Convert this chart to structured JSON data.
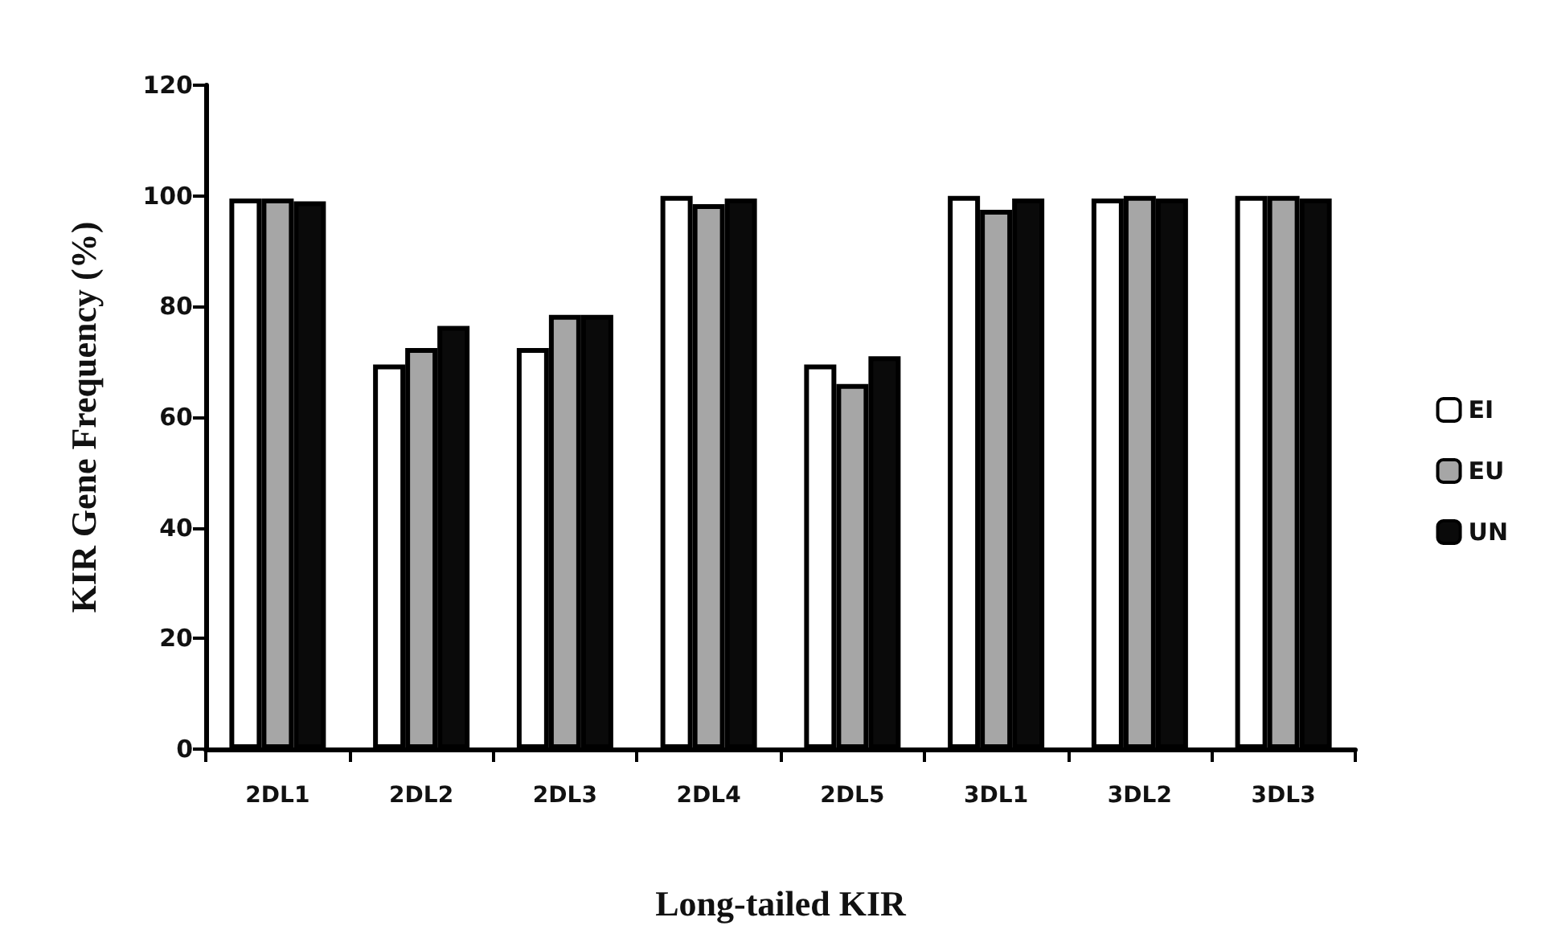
{
  "chart_data": {
    "type": "bar",
    "xlabel": "Long-tailed KIR",
    "ylabel": "KIR Gene Frequency (%)",
    "categories": [
      "2DL1",
      "2DL2",
      "2DL3",
      "2DL4",
      "2DL5",
      "3DL1",
      "3DL2",
      "3DL3"
    ],
    "series": [
      {
        "name": "EI",
        "color": "#ffffff",
        "values": [
          99.5,
          69.5,
          72.5,
          100,
          69.5,
          100,
          99.5,
          100
        ]
      },
      {
        "name": "EU",
        "color": "#a6a6a6",
        "values": [
          99.5,
          72.5,
          78.5,
          98.5,
          66,
          97.5,
          100,
          100
        ]
      },
      {
        "name": "UN",
        "color": "#0a0a0a",
        "values": [
          99,
          76.5,
          78.5,
          99.5,
          71,
          99.5,
          99.5,
          99.5
        ]
      }
    ],
    "ylim": [
      0,
      120
    ],
    "yticks": [
      0,
      20,
      40,
      60,
      80,
      100,
      120
    ],
    "grid": false,
    "legend": "right"
  }
}
